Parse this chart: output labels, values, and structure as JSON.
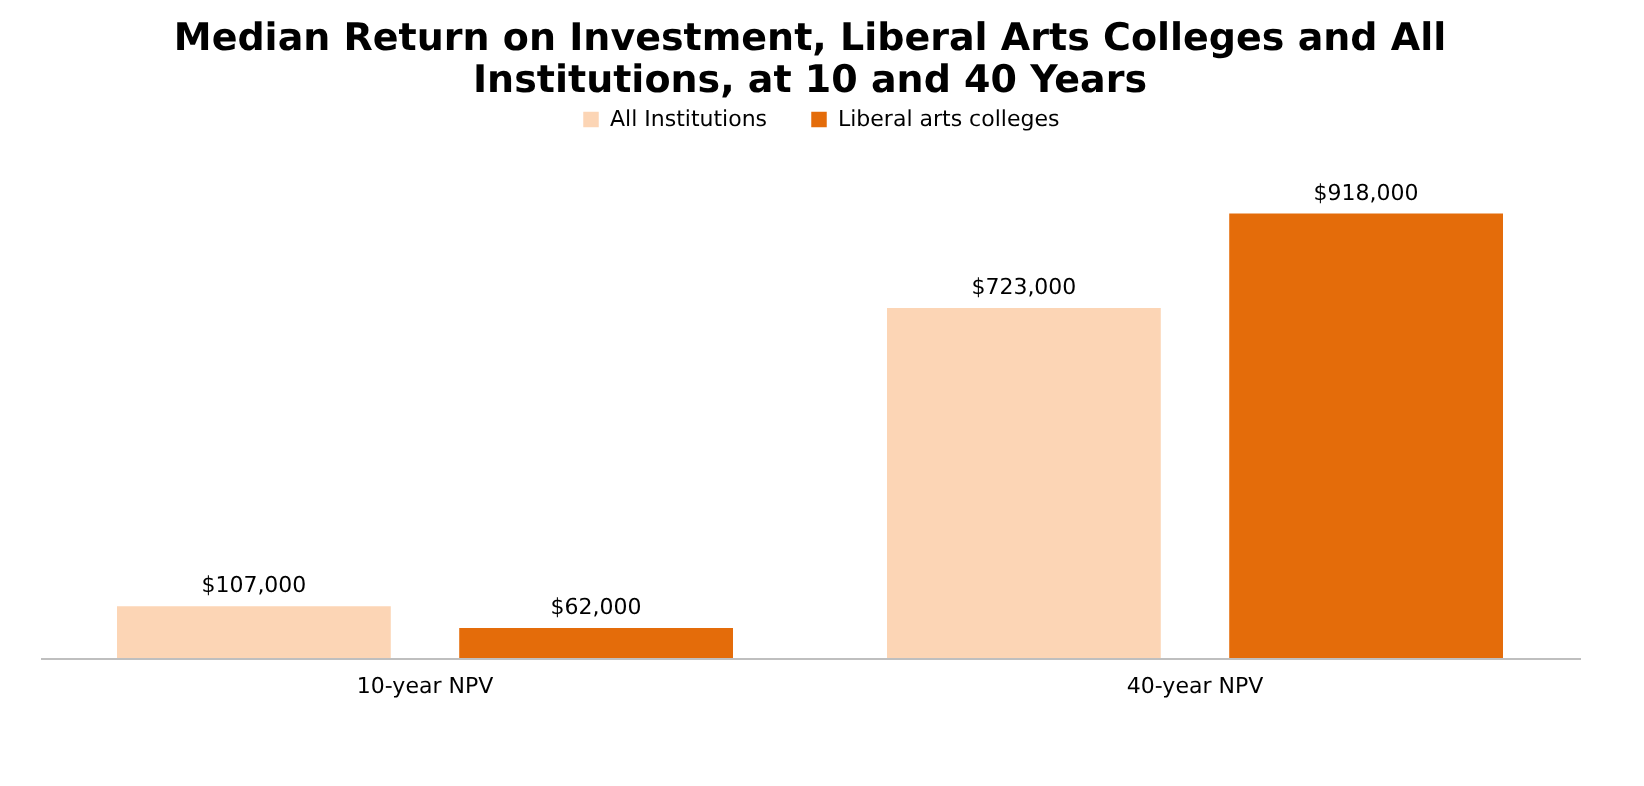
{
  "chart_data": {
    "type": "bar",
    "title": "Median Return on Investment, Liberal Arts Colleges and All Institutions, at 10 and 40 Years",
    "categories": [
      "10-year NPV",
      "40-year NPV"
    ],
    "series": [
      {
        "name": "All Institutions",
        "color": "#fcd5b5",
        "values": [
          107000,
          723000
        ],
        "value_labels": [
          "$107,000",
          "$723,000"
        ]
      },
      {
        "name": "Liberal arts colleges",
        "color": "#e46c0a",
        "values": [
          62000,
          918000
        ],
        "value_labels": [
          "$62,000",
          "$918,000"
        ]
      }
    ],
    "legend": "top"
  }
}
